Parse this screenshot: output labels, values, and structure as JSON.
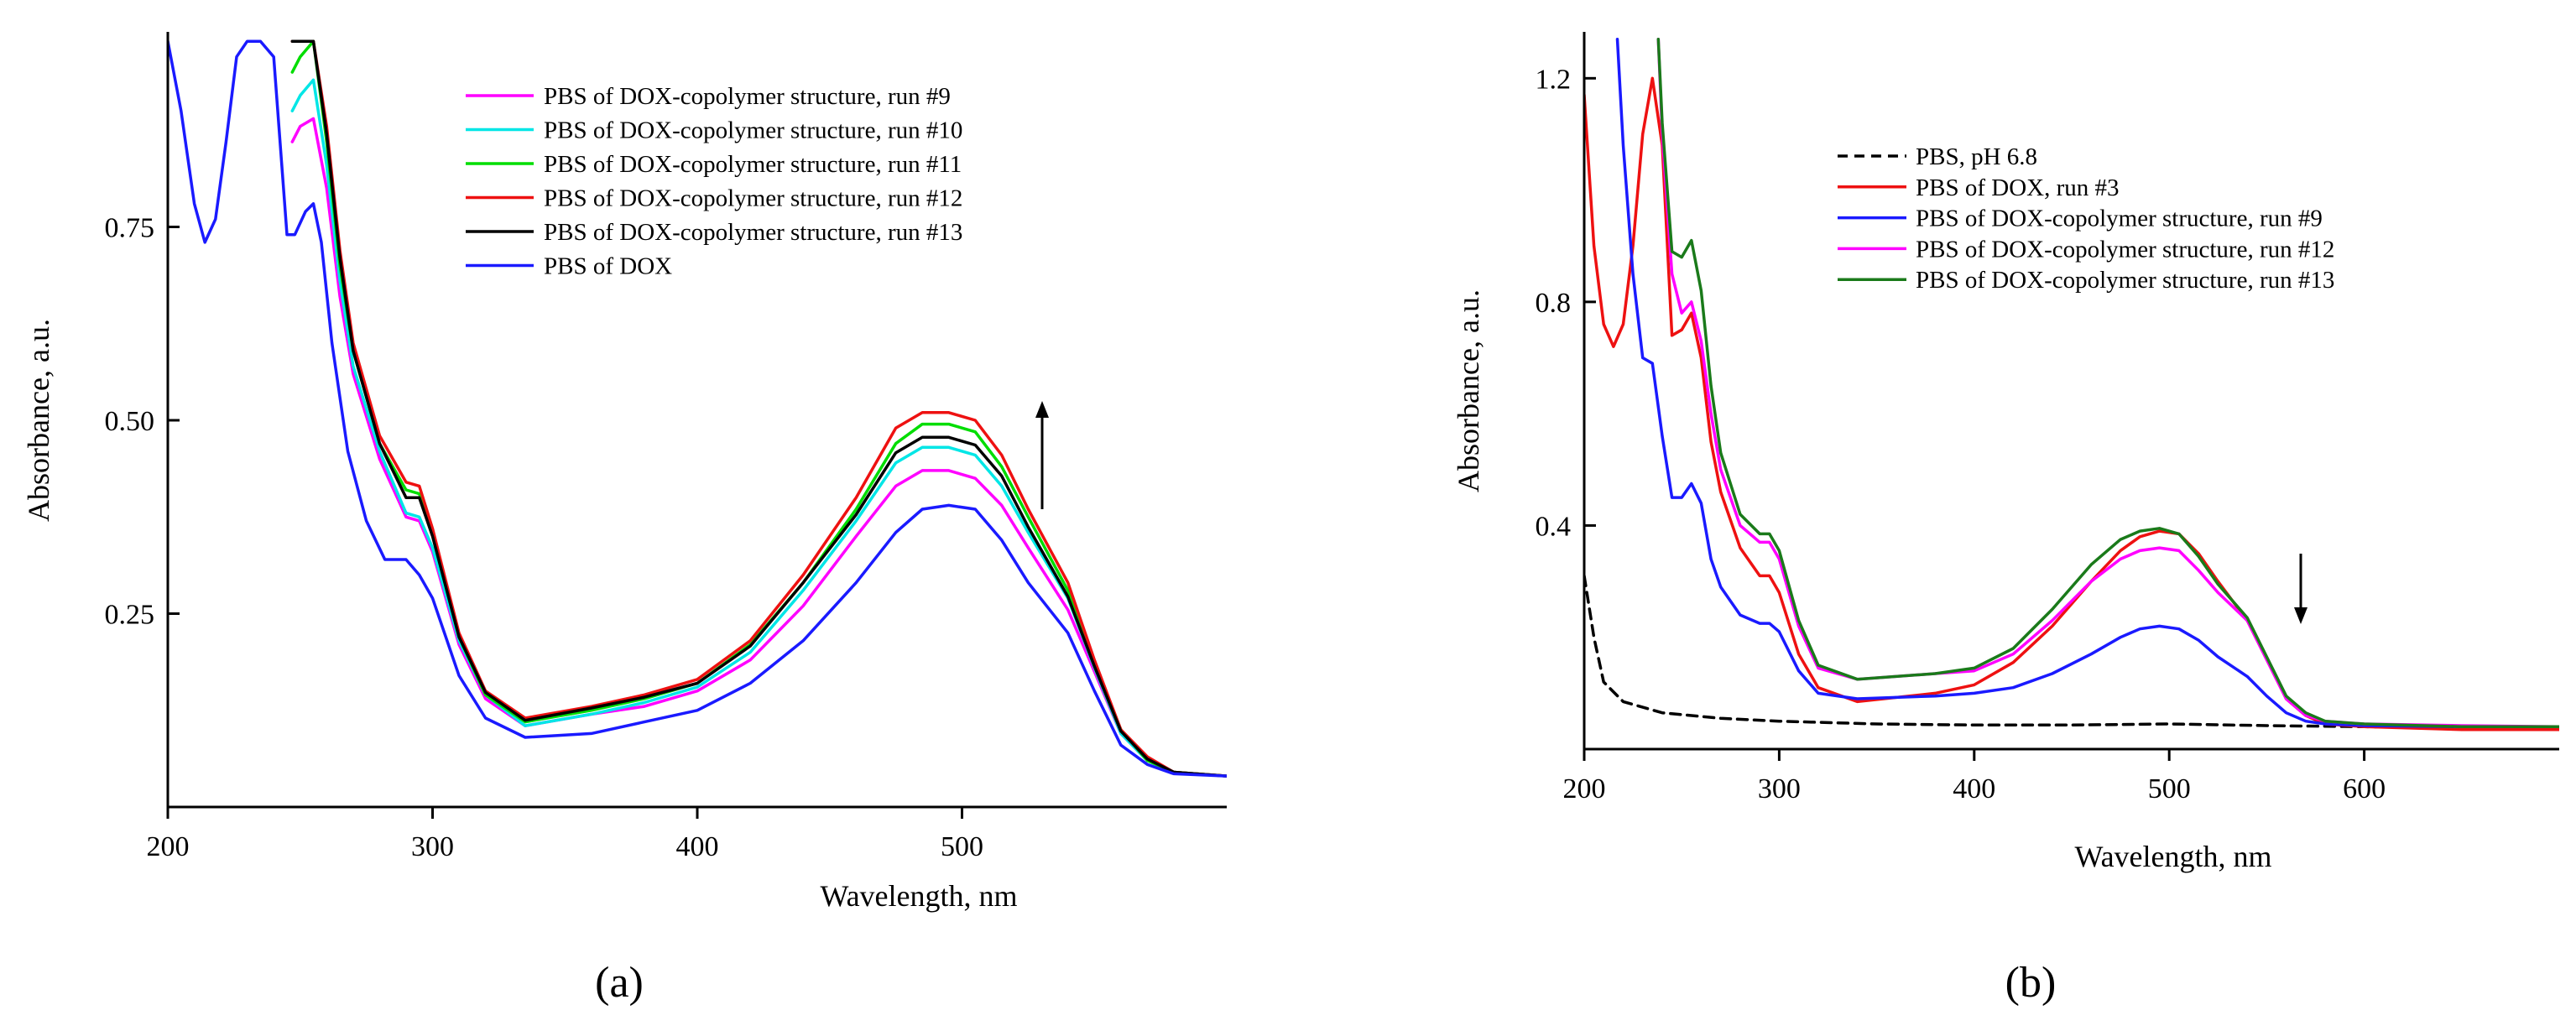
{
  "chart_data": [
    {
      "type": "line",
      "panel_label": "(a)",
      "xlabel": "Wavelength, nm",
      "ylabel": "Absorbance, a.u.",
      "xlim": [
        200,
        600
      ],
      "ylim": [
        0.0,
        1.0
      ],
      "xticks": [
        200,
        300,
        400,
        500
      ],
      "xtick_labels": [
        "200",
        "300",
        "400",
        "500"
      ],
      "yticks": [
        0.25,
        0.5,
        0.75
      ],
      "ytick_labels": [
        "0.25",
        "0.50",
        "0.75"
      ],
      "legend_position": "top-right",
      "annotation": "upward arrow indicating increasing absorbance at ~530 nm",
      "series": [
        {
          "name": "PBS of DOX-copolymer structure, run #9",
          "color": "#ff00ff",
          "x": [
            247,
            250,
            255,
            260,
            265,
            270,
            280,
            290,
            295,
            300,
            310,
            320,
            335,
            360,
            380,
            400,
            420,
            440,
            460,
            475,
            485,
            495,
            505,
            515,
            525,
            540,
            550,
            560,
            570,
            580,
            600
          ],
          "y": [
            0.86,
            0.88,
            0.89,
            0.8,
            0.66,
            0.56,
            0.45,
            0.375,
            0.37,
            0.33,
            0.21,
            0.14,
            0.105,
            0.12,
            0.13,
            0.15,
            0.19,
            0.26,
            0.35,
            0.415,
            0.435,
            0.435,
            0.425,
            0.39,
            0.335,
            0.255,
            0.175,
            0.095,
            0.06,
            0.045,
            0.04
          ]
        },
        {
          "name": "PBS of DOX-copolymer structure, run #10",
          "color": "#00e6e6",
          "x": [
            247,
            250,
            255,
            260,
            265,
            270,
            280,
            290,
            295,
            300,
            310,
            320,
            335,
            360,
            380,
            400,
            420,
            440,
            460,
            475,
            485,
            495,
            505,
            515,
            525,
            540,
            550,
            560,
            570,
            580,
            600
          ],
          "y": [
            0.9,
            0.92,
            0.94,
            0.83,
            0.68,
            0.57,
            0.46,
            0.38,
            0.375,
            0.335,
            0.215,
            0.145,
            0.105,
            0.12,
            0.135,
            0.155,
            0.2,
            0.28,
            0.37,
            0.445,
            0.465,
            0.465,
            0.455,
            0.415,
            0.355,
            0.27,
            0.18,
            0.095,
            0.06,
            0.045,
            0.04
          ]
        },
        {
          "name": "PBS of DOX-copolymer structure, run #11",
          "color": "#00dd00",
          "x": [
            247,
            250,
            255,
            260,
            265,
            270,
            280,
            290,
            295,
            300,
            310,
            320,
            335,
            360,
            380,
            400,
            420,
            440,
            460,
            475,
            485,
            495,
            505,
            515,
            525,
            540,
            550,
            560,
            570,
            580,
            600
          ],
          "y": [
            0.95,
            0.97,
            0.99,
            0.86,
            0.7,
            0.59,
            0.47,
            0.41,
            0.405,
            0.355,
            0.22,
            0.145,
            0.11,
            0.125,
            0.14,
            0.16,
            0.21,
            0.29,
            0.385,
            0.47,
            0.495,
            0.495,
            0.485,
            0.44,
            0.375,
            0.28,
            0.185,
            0.1,
            0.06,
            0.045,
            0.04
          ]
        },
        {
          "name": "PBS of DOX-copolymer structure, run #12",
          "color": "#ee1111",
          "x": [
            247,
            250,
            255,
            260,
            265,
            270,
            280,
            290,
            295,
            300,
            310,
            320,
            335,
            360,
            380,
            400,
            420,
            440,
            460,
            475,
            485,
            495,
            505,
            515,
            525,
            540,
            550,
            560,
            570,
            580,
            600
          ],
          "y": [
            0.99,
            0.99,
            0.99,
            0.88,
            0.72,
            0.6,
            0.48,
            0.42,
            0.415,
            0.36,
            0.225,
            0.15,
            0.115,
            0.13,
            0.145,
            0.165,
            0.215,
            0.3,
            0.4,
            0.49,
            0.51,
            0.51,
            0.5,
            0.455,
            0.385,
            0.29,
            0.19,
            0.1,
            0.065,
            0.045,
            0.04
          ]
        },
        {
          "name": "PBS of DOX-copolymer structure, run #13",
          "color": "#000000",
          "x": [
            247,
            250,
            255,
            260,
            265,
            270,
            280,
            290,
            295,
            300,
            310,
            320,
            335,
            360,
            380,
            400,
            420,
            440,
            460,
            475,
            485,
            495,
            505,
            515,
            525,
            540,
            550,
            560,
            570,
            580,
            600
          ],
          "y": [
            0.99,
            0.99,
            0.99,
            0.87,
            0.71,
            0.59,
            0.47,
            0.4,
            0.4,
            0.35,
            0.22,
            0.148,
            0.112,
            0.128,
            0.142,
            0.16,
            0.208,
            0.29,
            0.378,
            0.458,
            0.478,
            0.478,
            0.468,
            0.428,
            0.362,
            0.272,
            0.182,
            0.098,
            0.062,
            0.045,
            0.04
          ]
        },
        {
          "name": "PBS of DOX",
          "color": "#1a1aff",
          "x": [
            200,
            205,
            210,
            214,
            218,
            222,
            226,
            230,
            235,
            240,
            245,
            248,
            252,
            255,
            258,
            262,
            268,
            275,
            282,
            290,
            295,
            300,
            310,
            320,
            335,
            360,
            380,
            400,
            420,
            440,
            460,
            475,
            485,
            495,
            505,
            515,
            525,
            540,
            550,
            560,
            570,
            580,
            600
          ],
          "y": [
            0.99,
            0.9,
            0.78,
            0.73,
            0.76,
            0.86,
            0.97,
            0.99,
            0.99,
            0.97,
            0.74,
            0.74,
            0.77,
            0.78,
            0.73,
            0.6,
            0.46,
            0.37,
            0.32,
            0.32,
            0.3,
            0.27,
            0.17,
            0.115,
            0.09,
            0.095,
            0.11,
            0.125,
            0.16,
            0.215,
            0.29,
            0.355,
            0.385,
            0.39,
            0.385,
            0.345,
            0.29,
            0.225,
            0.15,
            0.08,
            0.055,
            0.043,
            0.04
          ]
        }
      ]
    },
    {
      "type": "line",
      "panel_label": "(b)",
      "xlabel": "Wavelength, nm",
      "ylabel": "Absorbance, a.u.",
      "xlim": [
        200,
        700
      ],
      "ylim": [
        0.0,
        1.28
      ],
      "xticks": [
        200,
        300,
        400,
        500,
        600
      ],
      "xtick_labels": [
        "200",
        "300",
        "400",
        "500",
        "600"
      ],
      "yticks": [
        0.4,
        0.8,
        1.2
      ],
      "ytick_labels": [
        "0.4",
        "0.8",
        "1.2"
      ],
      "legend_position": "top-right",
      "annotation": "downward arrow at ~550 nm",
      "series": [
        {
          "name": "PBS, pH 6.8",
          "color": "#000000",
          "dash": "dashed",
          "x": [
            200,
            205,
            210,
            220,
            240,
            270,
            300,
            350,
            400,
            450,
            500,
            550,
            600,
            650,
            700
          ],
          "y": [
            0.31,
            0.2,
            0.12,
            0.085,
            0.065,
            0.055,
            0.05,
            0.045,
            0.043,
            0.043,
            0.045,
            0.042,
            0.04,
            0.038,
            0.037
          ]
        },
        {
          "name": "PBS of DOX,  run #3",
          "color": "#ee1111",
          "x": [
            200,
            205,
            210,
            215,
            220,
            225,
            230,
            235,
            240,
            245,
            250,
            255,
            260,
            265,
            270,
            280,
            290,
            295,
            300,
            310,
            320,
            340,
            380,
            400,
            420,
            440,
            460,
            475,
            485,
            495,
            505,
            515,
            525,
            540,
            550,
            560,
            570,
            580,
            600,
            650,
            700
          ],
          "y": [
            1.17,
            0.9,
            0.76,
            0.72,
            0.76,
            0.9,
            1.1,
            1.2,
            1.08,
            0.74,
            0.75,
            0.78,
            0.7,
            0.55,
            0.46,
            0.36,
            0.31,
            0.31,
            0.28,
            0.17,
            0.11,
            0.085,
            0.1,
            0.115,
            0.155,
            0.22,
            0.3,
            0.355,
            0.38,
            0.39,
            0.385,
            0.35,
            0.3,
            0.23,
            0.16,
            0.09,
            0.06,
            0.045,
            0.04,
            0.035,
            0.035
          ]
        },
        {
          "name": "PBS of DOX-copolymer structure, run #9",
          "color": "#1a1aff",
          "x": [
            217,
            220,
            225,
            230,
            235,
            240,
            245,
            250,
            255,
            260,
            265,
            270,
            280,
            290,
            295,
            300,
            310,
            320,
            340,
            380,
            400,
            420,
            440,
            460,
            475,
            485,
            495,
            505,
            515,
            525,
            540,
            550,
            560,
            570,
            580,
            600,
            650,
            700
          ],
          "y": [
            1.27,
            1.08,
            0.85,
            0.7,
            0.69,
            0.56,
            0.45,
            0.45,
            0.475,
            0.44,
            0.34,
            0.29,
            0.24,
            0.225,
            0.225,
            0.21,
            0.14,
            0.1,
            0.09,
            0.095,
            0.1,
            0.11,
            0.135,
            0.17,
            0.2,
            0.215,
            0.22,
            0.215,
            0.195,
            0.165,
            0.13,
            0.095,
            0.065,
            0.05,
            0.045,
            0.042,
            0.04,
            0.04
          ]
        },
        {
          "name": "PBS of DOX-copolymer structure, run #12",
          "color": "#ff00ff",
          "x": [
            238,
            240,
            245,
            250,
            255,
            260,
            265,
            270,
            280,
            290,
            295,
            300,
            310,
            320,
            340,
            380,
            400,
            420,
            440,
            460,
            475,
            485,
            495,
            505,
            515,
            525,
            540,
            550,
            560,
            570,
            580,
            600,
            650,
            700
          ],
          "y": [
            1.27,
            1.1,
            0.85,
            0.78,
            0.8,
            0.73,
            0.6,
            0.5,
            0.4,
            0.37,
            0.37,
            0.34,
            0.22,
            0.145,
            0.125,
            0.135,
            0.14,
            0.17,
            0.23,
            0.3,
            0.34,
            0.355,
            0.36,
            0.355,
            0.32,
            0.28,
            0.23,
            0.16,
            0.09,
            0.06,
            0.05,
            0.045,
            0.042,
            0.04
          ]
        },
        {
          "name": "PBS of DOX-copolymer structure, run #13",
          "color": "#1a7a1a",
          "x": [
            238,
            240,
            245,
            250,
            255,
            260,
            265,
            270,
            280,
            290,
            295,
            300,
            310,
            320,
            340,
            380,
            400,
            420,
            440,
            460,
            475,
            485,
            495,
            505,
            515,
            525,
            540,
            550,
            560,
            570,
            580,
            600,
            650,
            700
          ],
          "y": [
            1.27,
            1.12,
            0.89,
            0.88,
            0.91,
            0.82,
            0.65,
            0.53,
            0.42,
            0.385,
            0.385,
            0.355,
            0.23,
            0.15,
            0.125,
            0.135,
            0.145,
            0.18,
            0.25,
            0.33,
            0.375,
            0.39,
            0.395,
            0.385,
            0.345,
            0.295,
            0.235,
            0.165,
            0.095,
            0.065,
            0.05,
            0.045,
            0.04,
            0.04
          ]
        }
      ]
    }
  ]
}
